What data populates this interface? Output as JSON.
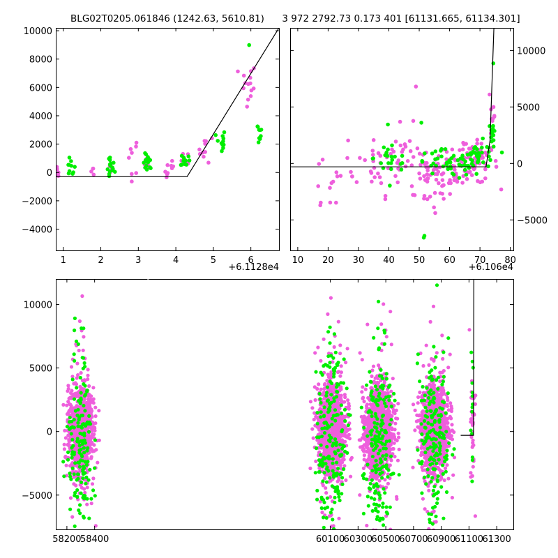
{
  "colors": {
    "series_a": "#ee5fdc",
    "series_b": "#00ee00",
    "model": "#000000"
  },
  "chart_data": [
    {
      "type": "scatter",
      "title": "BLG02T0205.061846 (1242.63, 5610.81)",
      "xlim": [
        0.8,
        6.75
      ],
      "ylim": [
        -5500,
        10200
      ],
      "x_ticks": [
        1,
        2,
        3,
        4,
        5,
        6
      ],
      "y_ticks": [
        -4000,
        -2000,
        0,
        2000,
        4000,
        6000,
        8000,
        10000
      ],
      "x_tick_labels": [
        "1",
        "2",
        "3",
        "4",
        "5",
        "6"
      ],
      "y_tick_labels": [
        "−4000",
        "−2000",
        "0",
        "2000",
        "4000",
        "6000",
        "8000",
        "10000"
      ],
      "x_offset_label": "+6.1128e4",
      "model_line": [
        [
          0.8,
          -300
        ],
        [
          4.3,
          -300
        ],
        [
          6.75,
          10200
        ]
      ],
      "series": [
        {
          "color_key": "series_a",
          "clusters": [
            [
              0.85,
              -100,
              0.05,
              350,
              5
            ],
            [
              1.85,
              200,
              0.05,
              250,
              4
            ],
            [
              2.25,
              400,
              0.05,
              350,
              5
            ],
            [
              2.85,
              1200,
              0.08,
              700,
              8
            ],
            [
              3.25,
              400,
              0.05,
              300,
              5
            ],
            [
              3.85,
              200,
              0.08,
              400,
              9
            ],
            [
              4.25,
              850,
              0.05,
              300,
              5
            ],
            [
              4.8,
              1700,
              0.1,
              500,
              10
            ],
            [
              5.9,
              6000,
              0.12,
              900,
              14
            ]
          ]
        },
        {
          "color_key": "series_b",
          "clusters": [
            [
              1.2,
              300,
              0.06,
              300,
              10
            ],
            [
              2.25,
              300,
              0.06,
              450,
              15
            ],
            [
              3.25,
              600,
              0.06,
              350,
              15
            ],
            [
              4.25,
              900,
              0.06,
              250,
              12
            ],
            [
              5.2,
              2100,
              0.06,
              500,
              12
            ],
            [
              5.95,
              9000,
              0.01,
              50,
              1
            ],
            [
              6.2,
              2800,
              0.06,
              400,
              10
            ]
          ]
        }
      ]
    },
    {
      "type": "scatter",
      "title": "3 972 2792.73 0.173 401 [61131.665, 61134.301]",
      "xlim": [
        7.5,
        81
      ],
      "ylim": [
        -7700,
        12000
      ],
      "x_ticks": [
        10,
        20,
        30,
        40,
        50,
        60,
        70,
        80
      ],
      "y_ticks": [
        -5000,
        0,
        5000,
        10000
      ],
      "x_tick_labels": [
        "10",
        "20",
        "30",
        "40",
        "50",
        "60",
        "70",
        "80"
      ],
      "y_tick_labels": [
        "−5000",
        "0",
        "5000",
        "10000"
      ],
      "x_offset_label": "+6.106e4",
      "model_line": [
        [
          7.5,
          -300
        ],
        [
          72,
          -300
        ],
        [
          73.3,
          2000
        ],
        [
          74.6,
          12000
        ]
      ],
      "series": [
        {
          "color_key": "series_a",
          "clusters": [
            [
              22,
              -1500,
              5,
              1800,
              14
            ],
            [
              35,
              0,
              5,
              1300,
              20
            ],
            [
              44,
              300,
              5,
              1500,
              40
            ],
            [
              52,
              -1500,
              2,
              1800,
              18
            ],
            [
              60,
              -500,
              5,
              1000,
              60
            ],
            [
              68,
              0,
              4,
              900,
              50
            ],
            [
              74,
              4000,
              0.6,
              2500,
              12
            ],
            [
              48,
              7000,
              1,
              300,
              1
            ]
          ]
        },
        {
          "color_key": "series_b",
          "clusters": [
            [
              41,
              500,
              3,
              900,
              20
            ],
            [
              60,
              0,
              6,
              600,
              50
            ],
            [
              70,
              500,
              3,
              700,
              30
            ],
            [
              74.3,
              2800,
              0.4,
              500,
              12
            ],
            [
              51.5,
              -6600,
              0.2,
              100,
              2
            ],
            [
              51,
              3500,
              0.2,
              100,
              1
            ],
            [
              40.5,
              -2000,
              0.3,
              200,
              1
            ],
            [
              74.5,
              9000,
              0.1,
              100,
              1
            ]
          ]
        }
      ]
    },
    {
      "type": "scatter",
      "xlim": [
        58120,
        61420
      ],
      "ylim": [
        -7700,
        12000
      ],
      "x_ticks": [
        58200,
        58400,
        60100,
        60300,
        60500,
        60700,
        60900,
        61100,
        61300
      ],
      "y_ticks": [
        -5000,
        0,
        5000,
        10000
      ],
      "x_tick_labels": [
        "58200",
        "58400",
        "60100",
        "60300",
        "60500",
        "60700",
        "60900",
        "61100",
        "61300"
      ],
      "y_tick_labels": [
        "−5000",
        "0",
        "5000",
        "10000"
      ],
      "model_line": [
        [
          61040,
          -300
        ],
        [
          61133,
          -300
        ],
        [
          61135,
          12000
        ]
      ],
      "series": [
        {
          "color_key": "series_a",
          "clusters": [
            [
              58300,
              0,
              45,
              1700,
              900
            ],
            [
              60110,
              200,
              50,
              1800,
              1100
            ],
            [
              60450,
              0,
              50,
              1700,
              1100
            ],
            [
              60850,
              100,
              50,
              1700,
              1100
            ],
            [
              61125,
              0,
              8,
              2200,
              50
            ]
          ]
        },
        {
          "color_key": "series_b",
          "clusters": [
            [
              58300,
              -1000,
              45,
              3500,
              160
            ],
            [
              60110,
              -800,
              50,
              3500,
              200
            ],
            [
              60450,
              -500,
              50,
              3500,
              200
            ],
            [
              60850,
              -500,
              50,
              3200,
              180
            ],
            [
              61125,
              1000,
              6,
              3500,
              15
            ]
          ]
        }
      ]
    }
  ]
}
